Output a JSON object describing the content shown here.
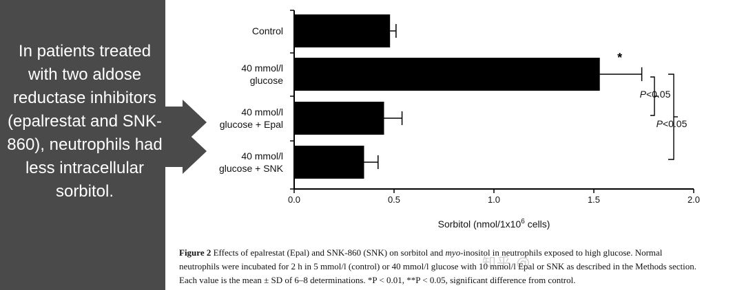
{
  "panel": {
    "text": "In patients treated with two aldose reductase inhibitors (epalrestat and SNK-860), neutrophils had less intracellular sorbitol."
  },
  "chart_data": {
    "type": "bar",
    "orientation": "horizontal",
    "categories": [
      [
        "Control"
      ],
      [
        "40 mmol/l",
        "glucose"
      ],
      [
        "40 mmol/l",
        "glucose + Epal"
      ],
      [
        "40 mmol/l",
        "glucose + SNK"
      ]
    ],
    "values": [
      0.48,
      1.53,
      0.45,
      0.35
    ],
    "errors": [
      0.03,
      0.21,
      0.09,
      0.07
    ],
    "significance_marks": [
      "",
      "*",
      "",
      ""
    ],
    "xlim": [
      0,
      2.0
    ],
    "xticks": [
      "0.0",
      "0.5",
      "1.0",
      "1.5",
      "2.0"
    ],
    "xlabel": "Sorbitol (nmol/1x10",
    "xlabel_sup": "6",
    "xlabel_tail": " cells)",
    "annotations": [
      {
        "label": "P",
        "value": "<0.05",
        "between": [
          1,
          2
        ]
      },
      {
        "label": "P",
        "value": "<0.05",
        "between": [
          1,
          3
        ]
      }
    ],
    "bar_color": "#000000",
    "grid": false
  },
  "caption": {
    "lead": "Figure 2",
    "line1_a": " Effects of epalrestat (Epal) and SNK-860 (SNK) on sorbitol and ",
    "line1_italic": "myo",
    "line1_b": "-inositol in neutrophils exposed to high glucose. Normal",
    "line2": "neutrophils were incubated for 2 h in 5 mmol/l (control) or 40 mmol/l glucose with 10 mmol/l Epal or SNK as described in the Methods section.",
    "line3": "Each value is the mean ± SD of 6–8 determinations. *P < 0.01, **P < 0.05, significant difference from control."
  },
  "watermark": "知乎 @"
}
